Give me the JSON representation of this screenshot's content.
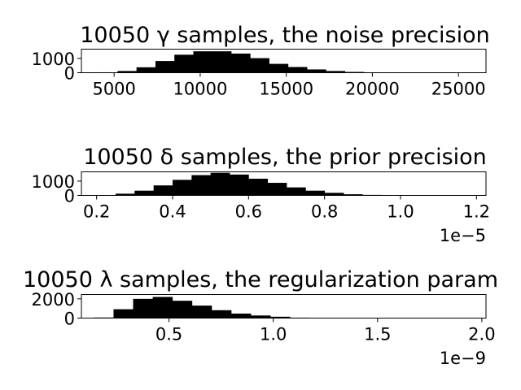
{
  "chart_data": [
    {
      "type": "bar",
      "title": "10050 γ samples, the noise precision",
      "xlabel": "",
      "ylabel": "",
      "xlim": [
        3100,
        26600
      ],
      "ylim": [
        0,
        1650
      ],
      "xticks": [
        5000,
        10000,
        15000,
        20000,
        25000
      ],
      "xtick_labels": [
        "5000",
        "10000",
        "15000",
        "20000",
        "25000"
      ],
      "yticks": [
        0,
        1000
      ],
      "ytick_labels": [
        "0",
        "1000"
      ],
      "offset_text": "",
      "bin_edges": [
        4100,
        5200,
        6300,
        7400,
        8500,
        9600,
        10700,
        11800,
        12900,
        14000,
        15100,
        16200,
        17300,
        18400,
        19500,
        20600,
        21700,
        22800,
        23900,
        25000,
        26100
      ],
      "counts": [
        30,
        120,
        380,
        820,
        1260,
        1500,
        1500,
        1340,
        1020,
        620,
        400,
        230,
        120,
        55,
        25,
        12,
        6,
        3,
        2,
        1
      ],
      "bar_color": "#000000",
      "grid": false
    },
    {
      "type": "bar",
      "title": "10050 δ samples, the prior precision",
      "xlabel": "",
      "ylabel": "",
      "xlim": [
        0.16,
        1.225
      ],
      "ylim": [
        0,
        1650
      ],
      "xticks": [
        0.2,
        0.4,
        0.6,
        0.8,
        1.0,
        1.2
      ],
      "xtick_labels": [
        "0.2",
        "0.4",
        "0.6",
        "0.8",
        "1.0",
        "1.2"
      ],
      "yticks": [
        0,
        1000
      ],
      "ytick_labels": [
        "0",
        "1000"
      ],
      "offset_text": "1e−5",
      "bin_edges": [
        0.2,
        0.25,
        0.3,
        0.35,
        0.4,
        0.45,
        0.5,
        0.55,
        0.6,
        0.65,
        0.7,
        0.75,
        0.8,
        0.85,
        0.9,
        0.95,
        1.0,
        1.05,
        1.1,
        1.15,
        1.2
      ],
      "counts": [
        20,
        120,
        330,
        700,
        1090,
        1420,
        1580,
        1460,
        1170,
        880,
        560,
        330,
        180,
        80,
        35,
        15,
        7,
        3,
        2,
        1
      ],
      "bar_color": "#000000",
      "grid": false
    },
    {
      "type": "bar",
      "title": "10050 λ samples, the regularization param",
      "xlabel": "",
      "ylabel": "",
      "xlim": [
        0.08,
        2.02
      ],
      "ylim": [
        0,
        2450
      ],
      "xticks": [
        0.5,
        1.0,
        1.5,
        2.0
      ],
      "xtick_labels": [
        "0.5",
        "1.0",
        "1.5",
        "2.0"
      ],
      "yticks": [
        0,
        2000
      ],
      "ytick_labels": [
        "0",
        "2000"
      ],
      "offset_text": "1e−9",
      "bin_edges": [
        0.14,
        0.234,
        0.328,
        0.422,
        0.516,
        0.61,
        0.704,
        0.798,
        0.892,
        0.986,
        1.08,
        1.174,
        1.268,
        1.362,
        1.456,
        1.55,
        1.644,
        1.738,
        1.832,
        1.926,
        2.02
      ],
      "counts": [
        60,
        920,
        2000,
        2200,
        1800,
        1300,
        820,
        470,
        270,
        140,
        50,
        20,
        9,
        5,
        3,
        2,
        1,
        1,
        1,
        1
      ],
      "bar_color": "#000000",
      "grid": false
    }
  ]
}
